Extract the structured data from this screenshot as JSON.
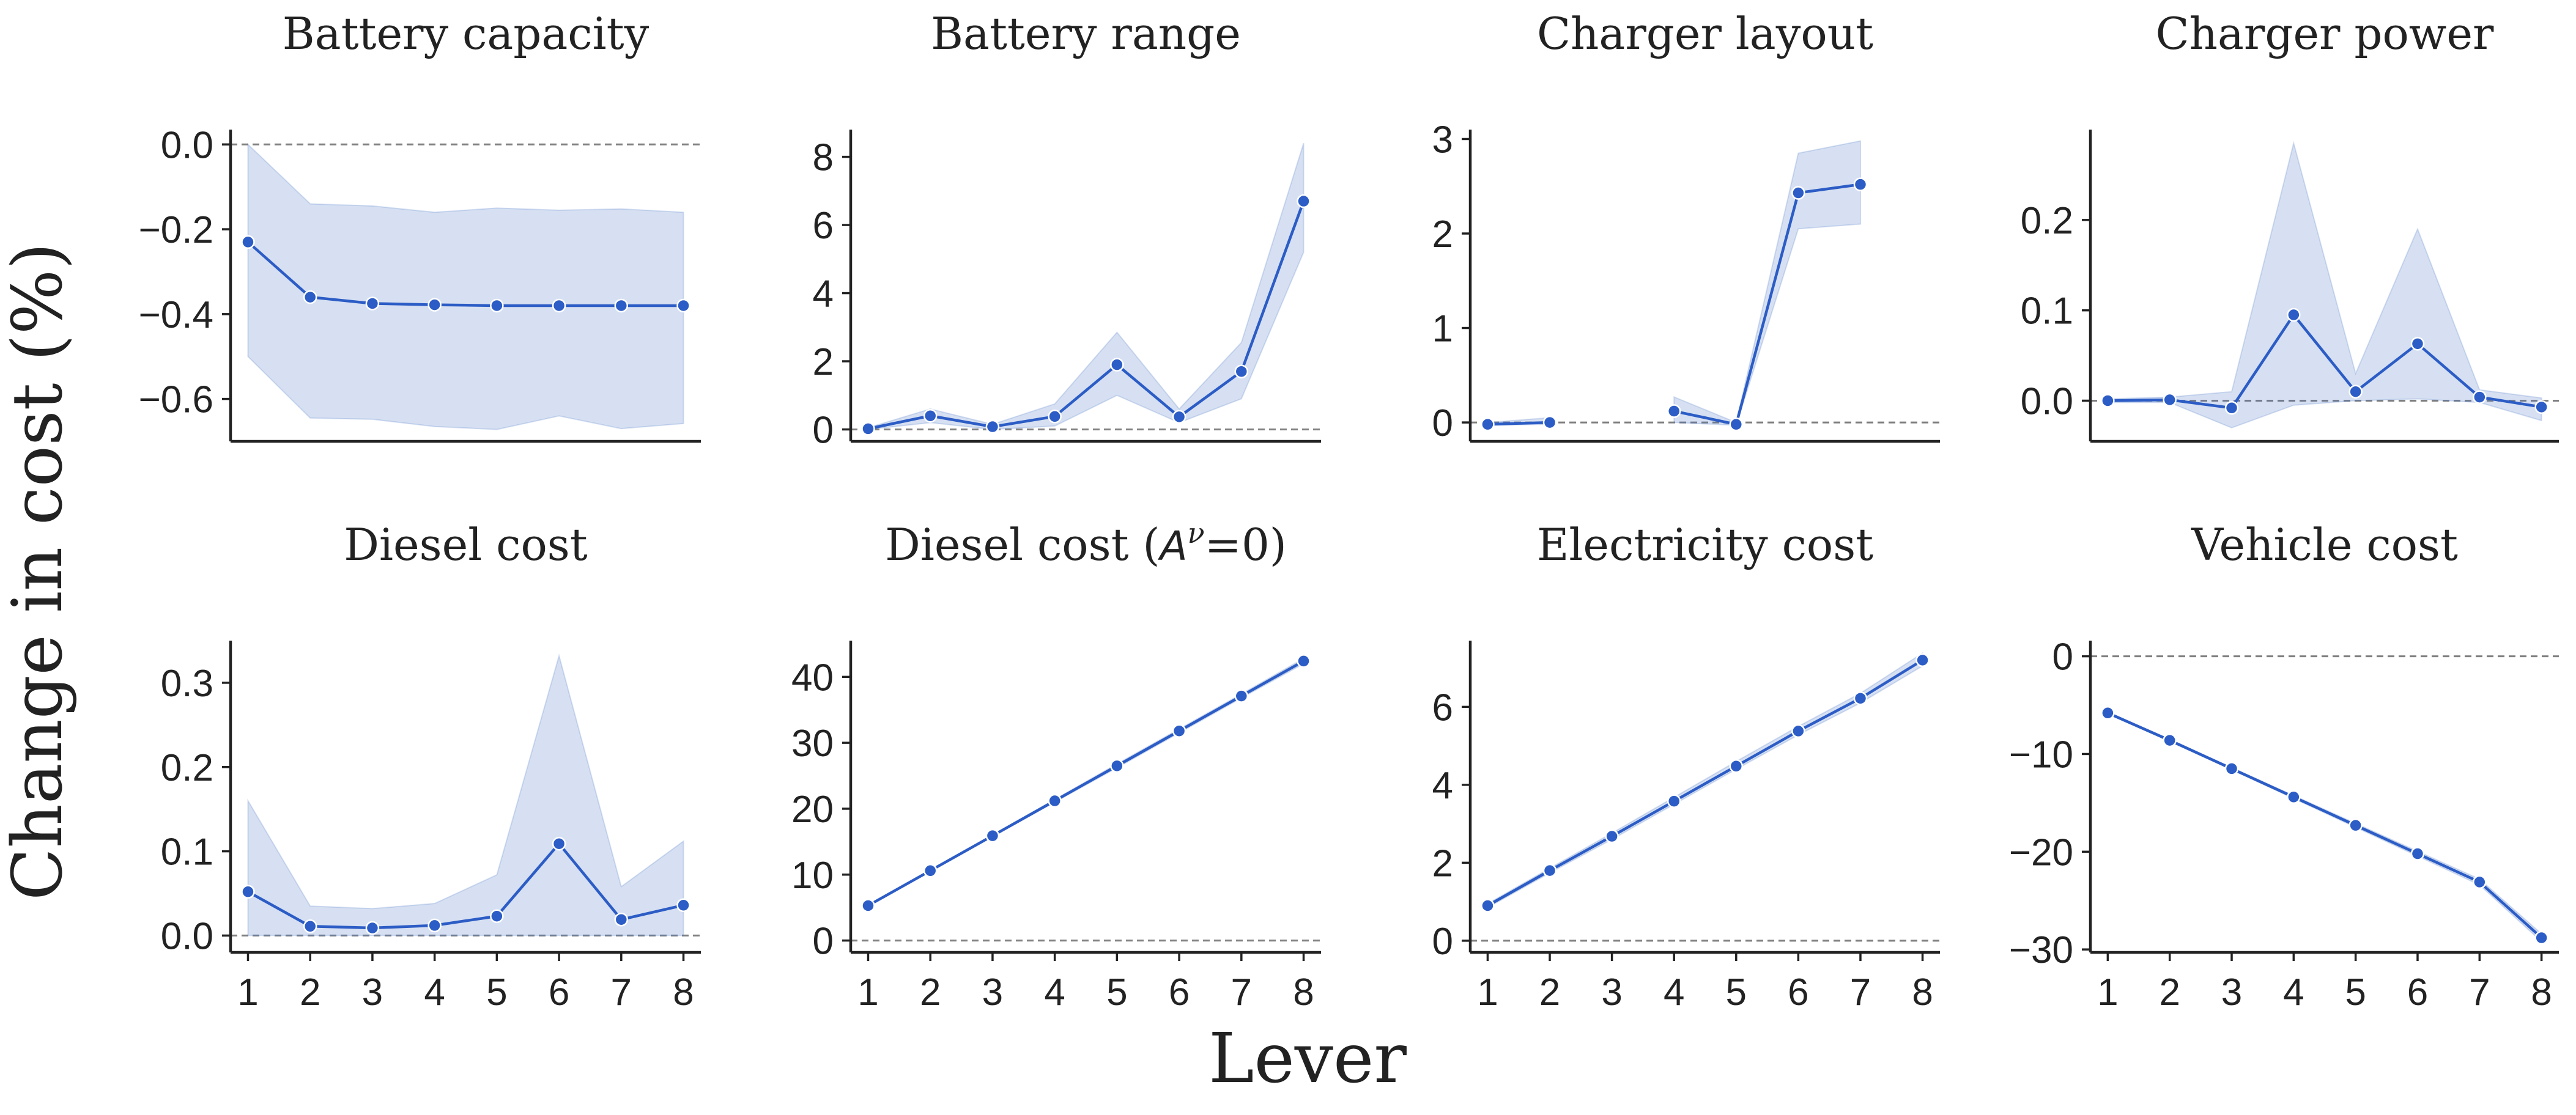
{
  "figure": {
    "ylabel": "Change in cost (%)",
    "xlabel": "Lever"
  },
  "colors": {
    "line": "#2c5cc5",
    "band": "#4472c4",
    "zero_line": "#808080",
    "axis": "#222222"
  },
  "chart_data": [
    {
      "type": "line",
      "title": "Battery capacity",
      "x": [
        1,
        2,
        3,
        4,
        5,
        6,
        7,
        8
      ],
      "values": [
        -0.23,
        -0.36,
        -0.375,
        -0.378,
        -0.38,
        -0.38,
        -0.38,
        -0.38
      ],
      "lower": [
        -0.5,
        -0.645,
        -0.648,
        -0.665,
        -0.672,
        -0.64,
        -0.67,
        -0.658
      ],
      "upper": [
        0.0,
        -0.14,
        -0.145,
        -0.16,
        -0.15,
        -0.155,
        -0.152,
        -0.16
      ],
      "ylim": [
        -0.7,
        0.035
      ],
      "yticks": [
        0.0,
        -0.2,
        -0.4,
        -0.6
      ],
      "ytick_labels": [
        "0.0",
        "−0.2",
        "−0.4",
        "−0.6"
      ],
      "xticks": [],
      "xtick_labels": [],
      "zero_line": true
    },
    {
      "type": "line",
      "title": "Battery range",
      "x": [
        1,
        2,
        3,
        4,
        5,
        6,
        7,
        8
      ],
      "values": [
        0.02,
        0.4,
        0.08,
        0.38,
        1.9,
        0.37,
        1.7,
        6.7
      ],
      "lower": [
        0.0,
        0.2,
        0.0,
        0.1,
        1.0,
        0.2,
        0.9,
        5.2
      ],
      "upper": [
        0.05,
        0.6,
        0.15,
        0.75,
        2.85,
        0.6,
        2.55,
        8.4
      ],
      "ylim": [
        -0.35,
        8.8
      ],
      "yticks": [
        0,
        2,
        4,
        6,
        8
      ],
      "ytick_labels": [
        "0",
        "2",
        "4",
        "6",
        "8"
      ],
      "xticks": [],
      "xtick_labels": [],
      "zero_line": true
    },
    {
      "type": "line",
      "title": "Charger layout",
      "x": [
        1,
        2,
        3,
        4,
        5,
        6,
        7,
        8
      ],
      "values": [
        -0.02,
        0.0,
        null,
        0.12,
        -0.02,
        2.43,
        2.52,
        null
      ],
      "lower": [
        -0.03,
        -0.02,
        null,
        0.0,
        -0.03,
        2.05,
        2.1,
        null
      ],
      "upper": [
        0.0,
        0.05,
        null,
        0.27,
        0.0,
        2.85,
        2.98,
        null
      ],
      "ylim": [
        -0.2,
        3.1
      ],
      "yticks": [
        0,
        1,
        2,
        3
      ],
      "ytick_labels": [
        "0",
        "1",
        "2",
        "3"
      ],
      "xticks": [],
      "xtick_labels": [],
      "zero_line": true
    },
    {
      "type": "line",
      "title": "Charger power",
      "x": [
        1,
        2,
        3,
        4,
        5,
        6,
        7,
        8
      ],
      "values": [
        0.0,
        0.001,
        -0.008,
        0.095,
        0.01,
        0.063,
        0.004,
        -0.007
      ],
      "lower": [
        -0.002,
        -0.002,
        -0.03,
        -0.005,
        0.0,
        0.002,
        -0.002,
        -0.022
      ],
      "upper": [
        0.002,
        0.004,
        0.01,
        0.285,
        0.03,
        0.19,
        0.012,
        0.003
      ],
      "ylim": [
        -0.045,
        0.3
      ],
      "yticks": [
        0.0,
        0.1,
        0.2
      ],
      "ytick_labels": [
        "0.0",
        "0.1",
        "0.2"
      ],
      "xticks": [],
      "xtick_labels": [],
      "zero_line": true
    },
    {
      "type": "line",
      "title": "Diesel cost",
      "x": [
        1,
        2,
        3,
        4,
        5,
        6,
        7,
        8
      ],
      "values": [
        0.052,
        0.011,
        0.009,
        0.012,
        0.023,
        0.109,
        0.019,
        0.036
      ],
      "lower": [
        0.0,
        0.0,
        0.0,
        0.0,
        0.0,
        0.0,
        0.0,
        0.0
      ],
      "upper": [
        0.16,
        0.035,
        0.032,
        0.038,
        0.072,
        0.332,
        0.058,
        0.112
      ],
      "ylim": [
        -0.02,
        0.35
      ],
      "yticks": [
        0.0,
        0.1,
        0.2,
        0.3
      ],
      "ytick_labels": [
        "0.0",
        "0.1",
        "0.2",
        "0.3"
      ],
      "xticks": [
        1,
        2,
        3,
        4,
        5,
        6,
        7,
        8
      ],
      "xtick_labels": [
        "1",
        "2",
        "3",
        "4",
        "5",
        "6",
        "7",
        "8"
      ],
      "zero_line": true
    },
    {
      "type": "line",
      "title": "Diesel cost (",
      "title_math_base": "A",
      "title_math_sup": "ν",
      "title_suffix": "=0)",
      "x": [
        1,
        2,
        3,
        4,
        5,
        6,
        7,
        8
      ],
      "values": [
        5.3,
        10.6,
        15.9,
        21.2,
        26.5,
        31.8,
        37.1,
        42.4
      ],
      "lower": [
        5.2,
        10.5,
        15.8,
        21.0,
        26.2,
        31.5,
        36.8,
        42.0
      ],
      "upper": [
        5.4,
        10.7,
        16.0,
        21.4,
        26.8,
        32.1,
        37.4,
        42.8
      ],
      "ylim": [
        -1.8,
        45.5
      ],
      "yticks": [
        0,
        10,
        20,
        30,
        40
      ],
      "ytick_labels": [
        "0",
        "10",
        "20",
        "30",
        "40"
      ],
      "xticks": [
        1,
        2,
        3,
        4,
        5,
        6,
        7,
        8
      ],
      "xtick_labels": [
        "1",
        "2",
        "3",
        "4",
        "5",
        "6",
        "7",
        "8"
      ],
      "zero_line": true
    },
    {
      "type": "line",
      "title": "Electricity cost",
      "x": [
        1,
        2,
        3,
        4,
        5,
        6,
        7,
        8
      ],
      "values": [
        0.9,
        1.8,
        2.68,
        3.58,
        4.48,
        5.38,
        6.22,
        7.2
      ],
      "lower": [
        0.85,
        1.74,
        2.6,
        3.5,
        4.4,
        5.28,
        6.1,
        7.05
      ],
      "upper": [
        0.95,
        1.86,
        2.76,
        3.68,
        4.6,
        5.5,
        6.35,
        7.38
      ],
      "ylim": [
        -0.3,
        7.7
      ],
      "yticks": [
        0,
        2,
        4,
        6
      ],
      "ytick_labels": [
        "0",
        "2",
        "4",
        "6"
      ],
      "xticks": [
        1,
        2,
        3,
        4,
        5,
        6,
        7,
        8
      ],
      "xtick_labels": [
        "1",
        "2",
        "3",
        "4",
        "5",
        "6",
        "7",
        "8"
      ],
      "zero_line": true
    },
    {
      "type": "line",
      "title": "Vehicle cost",
      "x": [
        1,
        2,
        3,
        4,
        5,
        6,
        7,
        8
      ],
      "values": [
        -5.8,
        -8.6,
        -11.5,
        -14.4,
        -17.3,
        -20.2,
        -23.1,
        -28.8
      ],
      "lower": [
        -5.9,
        -8.7,
        -11.6,
        -14.55,
        -17.5,
        -20.45,
        -23.4,
        -29.2
      ],
      "upper": [
        -5.7,
        -8.5,
        -11.4,
        -14.25,
        -17.1,
        -19.95,
        -22.8,
        -28.4
      ],
      "ylim": [
        -30.3,
        1.6
      ],
      "yticks": [
        0,
        -10,
        -20,
        -30
      ],
      "ytick_labels": [
        "0",
        "−10",
        "−20",
        "−30"
      ],
      "xticks": [
        1,
        2,
        3,
        4,
        5,
        6,
        7,
        8
      ],
      "xtick_labels": [
        "1",
        "2",
        "3",
        "4",
        "5",
        "6",
        "7",
        "8"
      ],
      "zero_line": true
    }
  ]
}
